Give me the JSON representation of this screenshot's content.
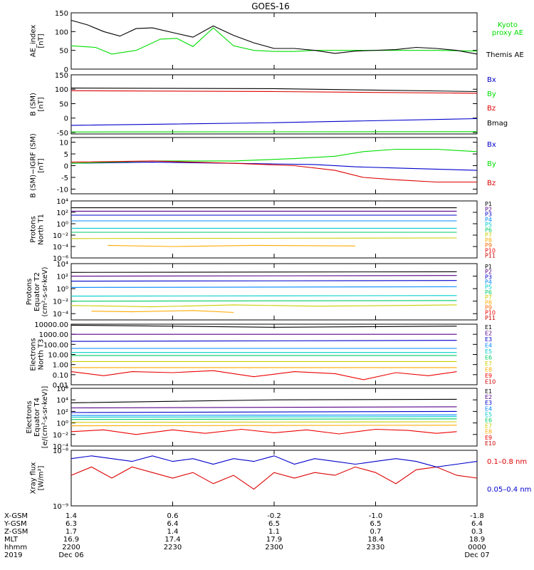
{
  "title": "GOES-16",
  "colors": {
    "black": "#000000",
    "green": "#00dd00",
    "red": "#dd0000",
    "blue": "#0000cc"
  },
  "chart_data": [
    {
      "id": "ae",
      "type": "line",
      "ylabel": [
        "AE_index",
        "[nT]"
      ],
      "ylim": [
        0,
        150
      ],
      "yticks": [
        "0",
        "50",
        "100",
        "150"
      ],
      "log": false,
      "series": [
        {
          "name": "Kyoto",
          "name2": "proxy AE",
          "color": "green",
          "x": [
            0,
            0.06,
            0.1,
            0.16,
            0.22,
            0.26,
            0.3,
            0.35,
            0.4,
            0.45,
            0.5,
            0.55,
            0.6,
            0.7,
            0.8,
            0.9,
            1.0
          ],
          "y": [
            62,
            58,
            40,
            50,
            80,
            82,
            60,
            110,
            62,
            50,
            47,
            47,
            50,
            50,
            50,
            50,
            48
          ]
        },
        {
          "name": "Themis AE",
          "color": "black",
          "x": [
            0,
            0.04,
            0.08,
            0.12,
            0.16,
            0.2,
            0.26,
            0.3,
            0.35,
            0.4,
            0.45,
            0.5,
            0.55,
            0.6,
            0.65,
            0.7,
            0.8,
            0.85,
            0.9,
            0.95,
            1.0
          ],
          "y": [
            130,
            118,
            100,
            88,
            108,
            110,
            95,
            85,
            115,
            90,
            70,
            55,
            55,
            50,
            42,
            48,
            52,
            58,
            55,
            50,
            40
          ]
        }
      ]
    },
    {
      "id": "bsm",
      "type": "line",
      "ylabel": [
        "B (SM)",
        "[nT]"
      ],
      "ylim": [
        -55,
        150
      ],
      "yticks": [
        "-50",
        "0",
        "50",
        "100",
        "150"
      ],
      "log": false,
      "series": [
        {
          "name": "Bx",
          "color": "blue",
          "x": [
            0,
            0.5,
            1.0
          ],
          "y": [
            -25,
            -16,
            -2
          ]
        },
        {
          "name": "By",
          "color": "green",
          "x": [
            0,
            1.0
          ],
          "y": [
            -48,
            -47
          ]
        },
        {
          "name": "Bz",
          "color": "red",
          "x": [
            0,
            0.5,
            1.0
          ],
          "y": [
            95,
            92,
            86
          ]
        },
        {
          "name": "Bmag",
          "color": "black",
          "x": [
            0,
            0.5,
            1.0
          ],
          "y": [
            104,
            102,
            92
          ]
        }
      ]
    },
    {
      "id": "bigrf",
      "type": "line",
      "ylabel": [
        "B (SM)−IGRF (SM)",
        "[nT]"
      ],
      "ylim": [
        -12,
        12
      ],
      "yticks": [
        "-10",
        "-5",
        "0",
        "5",
        "10"
      ],
      "log": false,
      "series": [
        {
          "name": "Bx",
          "color": "blue",
          "x": [
            0,
            0.2,
            0.4,
            0.6,
            0.7,
            0.8,
            0.9,
            1.0
          ],
          "y": [
            1,
            1.5,
            1,
            0.5,
            -0.5,
            -1,
            -1.5,
            -2
          ]
        },
        {
          "name": "By",
          "color": "green",
          "x": [
            0,
            0.2,
            0.4,
            0.55,
            0.65,
            0.72,
            0.8,
            0.9,
            1.0
          ],
          "y": [
            1,
            2,
            2,
            3,
            4,
            6,
            7,
            7,
            6
          ]
        },
        {
          "name": "Bz",
          "color": "red",
          "x": [
            0,
            0.2,
            0.4,
            0.55,
            0.65,
            0.72,
            0.8,
            0.9,
            1.0
          ],
          "y": [
            1.5,
            2,
            1,
            0,
            -2,
            -5,
            -6,
            -7,
            -7
          ]
        }
      ]
    },
    {
      "id": "protons_t1",
      "type": "line",
      "ylabel": [
        "Protons",
        "North T1"
      ],
      "ylim": [
        -6,
        4
      ],
      "yticks": [
        "10⁻⁶",
        "10⁻⁴",
        "10⁻²",
        "10⁰",
        "10²",
        "10⁴"
      ],
      "log": true,
      "legend": [
        "P1",
        "P2",
        "P3",
        "P4",
        "P5",
        "P6",
        "P7",
        "P8",
        "P9",
        "P10",
        "P11"
      ],
      "legend_colors": [
        "#000000",
        "#550088",
        "#0000cc",
        "#0088ff",
        "#00cccc",
        "#00cc66",
        "#cccc00",
        "#ffaa00",
        "#ff6600",
        "#ee0000",
        "#cc0000"
      ],
      "series": [
        {
          "name": "P1",
          "color": "#000000",
          "x": [
            0,
            0.95
          ],
          "y": [
            2.8,
            2.8
          ]
        },
        {
          "name": "P2",
          "color": "#550088",
          "x": [
            0,
            0.95
          ],
          "y": [
            2.2,
            2.2
          ]
        },
        {
          "name": "P3",
          "color": "#0000cc",
          "x": [
            0,
            0.95
          ],
          "y": [
            1.5,
            1.5
          ]
        },
        {
          "name": "P4",
          "color": "#0088ff",
          "x": [
            0,
            0.95
          ],
          "y": [
            0.5,
            0.5
          ]
        },
        {
          "name": "P5",
          "color": "#00cccc",
          "x": [
            0,
            0.95
          ],
          "y": [
            -0.8,
            -0.8
          ]
        },
        {
          "name": "P6",
          "color": "#00cc66",
          "x": [
            0,
            0.95
          ],
          "y": [
            -1.5,
            -1.5
          ]
        },
        {
          "name": "P7",
          "color": "#cccc00",
          "x": [
            0,
            0.95
          ],
          "y": [
            -2.6,
            -2.5
          ]
        },
        {
          "name": "P8",
          "color": "#ffaa00",
          "x": [
            0.09,
            0.25,
            0.45,
            0.7
          ],
          "y": [
            -3.8,
            -4,
            -3.8,
            -3.9
          ]
        }
      ]
    },
    {
      "id": "protons_t2",
      "type": "line",
      "ylabel": [
        "Protons",
        "Equator T2",
        "(cm²-s-sr-keV)"
      ],
      "ylim": [
        -5,
        4
      ],
      "yticks": [
        "10⁻⁴",
        "10⁻²",
        "10⁰",
        "10²",
        "10⁴"
      ],
      "log": true,
      "legend": [
        "P1",
        "P2",
        "P3",
        "P4",
        "P5",
        "P6",
        "P7",
        "P8",
        "P9",
        "P10",
        "P11"
      ],
      "legend_colors": [
        "#000000",
        "#550088",
        "#0000cc",
        "#0088ff",
        "#00cccc",
        "#00cc66",
        "#cccc00",
        "#ffaa00",
        "#ff6600",
        "#ee0000",
        "#cc0000"
      ],
      "series": [
        {
          "name": "P1",
          "color": "#000000",
          "x": [
            0,
            0.95
          ],
          "y": [
            2.6,
            2.7
          ]
        },
        {
          "name": "P2",
          "color": "#550088",
          "x": [
            0,
            0.95
          ],
          "y": [
            2.0,
            2.1
          ]
        },
        {
          "name": "P3",
          "color": "#0000cc",
          "x": [
            0,
            0.95
          ],
          "y": [
            1.2,
            1.3
          ]
        },
        {
          "name": "P4",
          "color": "#0088ff",
          "x": [
            0,
            0.95
          ],
          "y": [
            0.2,
            0.3
          ]
        },
        {
          "name": "P5",
          "color": "#00cccc",
          "x": [
            0,
            0.95
          ],
          "y": [
            -1.2,
            -1.1
          ]
        },
        {
          "name": "P6",
          "color": "#00cc66",
          "x": [
            0,
            0.95
          ],
          "y": [
            -2.0,
            -1.9
          ]
        },
        {
          "name": "P7",
          "color": "#cccc00",
          "x": [
            0,
            0.2,
            0.4,
            0.6,
            0.8,
            0.95
          ],
          "y": [
            -2.7,
            -2.9,
            -2.6,
            -2.8,
            -2.7,
            -2.6
          ]
        },
        {
          "name": "P8",
          "color": "#ffaa00",
          "x": [
            0.05,
            0.15,
            0.3,
            0.4
          ],
          "y": [
            -3.6,
            -3.7,
            -3.5,
            -3.8
          ]
        }
      ]
    },
    {
      "id": "electrons_t3",
      "type": "line",
      "ylabel": [
        "Electrons",
        "North T3"
      ],
      "ylim": [
        -2,
        4
      ],
      "yticks": [
        "0.01",
        "0.10",
        "1.00",
        "10.00",
        "100.00",
        "1000.00",
        "10000.00"
      ],
      "log": true,
      "legend": [
        "E1",
        "E2",
        "E3",
        "E4",
        "E5",
        "E6",
        "E7",
        "E8",
        "E9",
        "E10"
      ],
      "legend_colors": [
        "#000000",
        "#550088",
        "#0000cc",
        "#0088ff",
        "#00cccc",
        "#00cc66",
        "#cccc00",
        "#ffaa00",
        "#ee0000",
        "#cc0000"
      ],
      "series": [
        {
          "name": "E1",
          "color": "#000000",
          "x": [
            0,
            0.5,
            0.95
          ],
          "y": [
            3.9,
            3.7,
            3.8
          ]
        },
        {
          "name": "E2",
          "color": "#550088",
          "x": [
            0,
            0.95
          ],
          "y": [
            3.0,
            3.0
          ]
        },
        {
          "name": "E3",
          "color": "#0000cc",
          "x": [
            0,
            0.95
          ],
          "y": [
            2.3,
            2.4
          ]
        },
        {
          "name": "E4",
          "color": "#0088ff",
          "x": [
            0,
            0.95
          ],
          "y": [
            1.6,
            1.6
          ]
        },
        {
          "name": "E5",
          "color": "#00cccc",
          "x": [
            0,
            0.95
          ],
          "y": [
            1.2,
            1.2
          ]
        },
        {
          "name": "E6",
          "color": "#00cc66",
          "x": [
            0,
            0.95
          ],
          "y": [
            0.9,
            0.9
          ]
        },
        {
          "name": "E7",
          "color": "#cccc00",
          "x": [
            0,
            0.95
          ],
          "y": [
            0.3,
            0.3
          ]
        },
        {
          "name": "E8",
          "color": "#ffaa00",
          "x": [
            0,
            0.95
          ],
          "y": [
            -0.3,
            -0.3
          ]
        },
        {
          "name": "E9",
          "color": "#ee0000",
          "x": [
            0,
            0.08,
            0.15,
            0.25,
            0.35,
            0.45,
            0.55,
            0.65,
            0.72,
            0.8,
            0.88,
            0.95
          ],
          "y": [
            -0.7,
            -1.1,
            -0.7,
            -0.8,
            -0.6,
            -1.2,
            -0.7,
            -0.9,
            -1.5,
            -0.8,
            -1.1,
            -0.7
          ]
        }
      ]
    },
    {
      "id": "electrons_t4",
      "type": "line",
      "ylabel": [
        "Electrons",
        "Equator T4",
        "[e/(cm²-s-sr-keV)]"
      ],
      "ylim": [
        -4,
        6
      ],
      "yticks": [
        "10⁻⁴",
        "10⁻²",
        "10⁰",
        "10²",
        "10⁴",
        "10⁶"
      ],
      "log": true,
      "legend": [
        "E1",
        "E2",
        "E3",
        "E4",
        "E5",
        "E6",
        "E7",
        "E8",
        "E9",
        "E10"
      ],
      "legend_colors": [
        "#000000",
        "#550088",
        "#0000cc",
        "#0088ff",
        "#00cccc",
        "#00cc66",
        "#cccc00",
        "#ffaa00",
        "#ee0000",
        "#cc0000"
      ],
      "series": [
        {
          "name": "E1",
          "color": "#000000",
          "x": [
            0,
            0.5,
            0.95
          ],
          "y": [
            3.5,
            4.0,
            4.1
          ]
        },
        {
          "name": "E2",
          "color": "#550088",
          "x": [
            0,
            0.95
          ],
          "y": [
            2.6,
            2.8
          ]
        },
        {
          "name": "E3",
          "color": "#0000cc",
          "x": [
            0,
            0.95
          ],
          "y": [
            1.8,
            2.0
          ]
        },
        {
          "name": "E4",
          "color": "#0088ff",
          "x": [
            0,
            0.95
          ],
          "y": [
            1.3,
            1.4
          ]
        },
        {
          "name": "E5",
          "color": "#00cccc",
          "x": [
            0,
            0.95
          ],
          "y": [
            1.0,
            1.1
          ]
        },
        {
          "name": "E6",
          "color": "#00cc66",
          "x": [
            0,
            0.95
          ],
          "y": [
            0.6,
            0.7
          ]
        },
        {
          "name": "E7",
          "color": "#cccc00",
          "x": [
            0,
            0.95
          ],
          "y": [
            0.1,
            0.2
          ]
        },
        {
          "name": "E8",
          "color": "#ffaa00",
          "x": [
            0,
            0.95
          ],
          "y": [
            -0.5,
            -0.4
          ]
        },
        {
          "name": "E9",
          "color": "#ee0000",
          "x": [
            0,
            0.08,
            0.16,
            0.25,
            0.33,
            0.42,
            0.5,
            0.58,
            0.66,
            0.75,
            0.83,
            0.9,
            0.95
          ],
          "y": [
            -1.5,
            -1.2,
            -2.0,
            -1.2,
            -1.8,
            -1.1,
            -1.7,
            -1.2,
            -1.9,
            -1.1,
            -1.3,
            -1.8,
            -1.5
          ]
        }
      ]
    },
    {
      "id": "xray",
      "type": "line",
      "ylabel": [
        "Xray flux",
        "[W/m²]"
      ],
      "ylim": [
        -9,
        -8
      ],
      "yticks": [
        "10⁻⁹",
        "10⁻⁸"
      ],
      "log": true,
      "series": [
        {
          "name": "0.1–0.8 nm",
          "color": "red",
          "x": [
            0,
            0.05,
            0.1,
            0.15,
            0.2,
            0.25,
            0.3,
            0.35,
            0.4,
            0.45,
            0.5,
            0.55,
            0.6,
            0.65,
            0.7,
            0.75,
            0.8,
            0.85,
            0.9,
            0.95,
            1.0
          ],
          "y": [
            -8.45,
            -8.3,
            -8.5,
            -8.3,
            -8.4,
            -8.5,
            -8.4,
            -8.6,
            -8.45,
            -8.7,
            -8.4,
            -8.5,
            -8.4,
            -8.45,
            -8.3,
            -8.4,
            -8.6,
            -8.35,
            -8.3,
            -8.45,
            -8.5
          ]
        },
        {
          "name": "0.05–0.4 nm",
          "color": "blue",
          "x": [
            0,
            0.05,
            0.1,
            0.15,
            0.2,
            0.25,
            0.3,
            0.35,
            0.4,
            0.45,
            0.5,
            0.55,
            0.6,
            0.65,
            0.7,
            0.75,
            0.8,
            0.85,
            0.9,
            0.95,
            1.0
          ],
          "y": [
            -8.15,
            -8.1,
            -8.15,
            -8.2,
            -8.1,
            -8.2,
            -8.15,
            -8.25,
            -8.15,
            -8.2,
            -8.1,
            -8.25,
            -8.15,
            -8.2,
            -8.25,
            -8.2,
            -8.15,
            -8.2,
            -8.3,
            -8.25,
            -8.2
          ]
        }
      ]
    }
  ],
  "xaxis": {
    "row_labels": [
      "X-GSM",
      "Y-GSM",
      "Z-GSM",
      "MLT",
      "hhmm",
      "2019"
    ],
    "columns": [
      {
        "x": 0,
        "values": [
          "1.4",
          "6.3",
          "1.7",
          "16.9",
          "2200",
          "Dec 06"
        ]
      },
      {
        "x": 0.25,
        "values": [
          "0.6",
          "6.4",
          "1.4",
          "17.4",
          "2230",
          ""
        ]
      },
      {
        "x": 0.5,
        "values": [
          "-0.2",
          "6.5",
          "1.1",
          "17.9",
          "2300",
          ""
        ]
      },
      {
        "x": 0.75,
        "values": [
          "-1.0",
          "6.5",
          "0.7",
          "18.4",
          "2330",
          ""
        ]
      },
      {
        "x": 1.0,
        "values": [
          "-1.8",
          "6.4",
          "0.3",
          "18.9",
          "0000",
          "Dec 07"
        ]
      }
    ]
  }
}
